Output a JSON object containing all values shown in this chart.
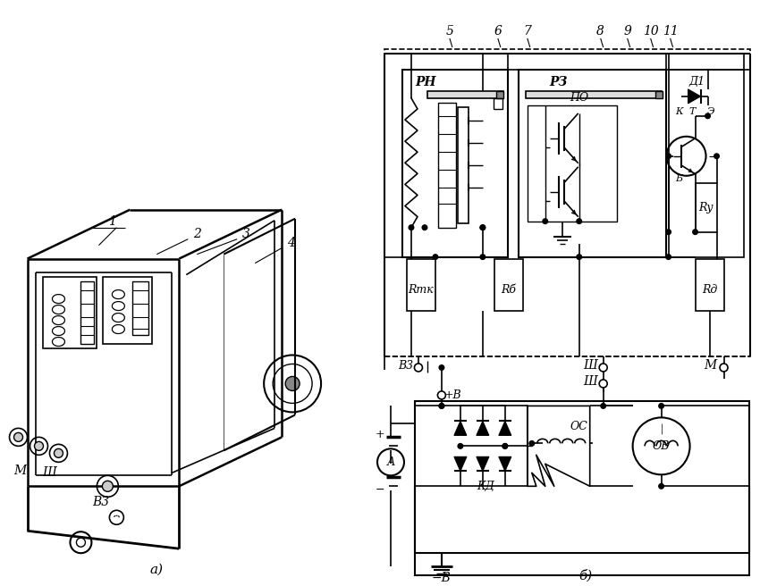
{
  "bg": "#ffffff",
  "lc": "#000000",
  "figsize": [
    8.5,
    6.56
  ],
  "dpi": 100,
  "num_labels": [
    "5",
    "6",
    "7",
    "8",
    "9",
    "10",
    "11"
  ],
  "num_x": [
    503,
    557,
    590,
    672,
    702,
    728,
    750
  ],
  "num_y": [
    35,
    35,
    35,
    35,
    35,
    35,
    35
  ]
}
